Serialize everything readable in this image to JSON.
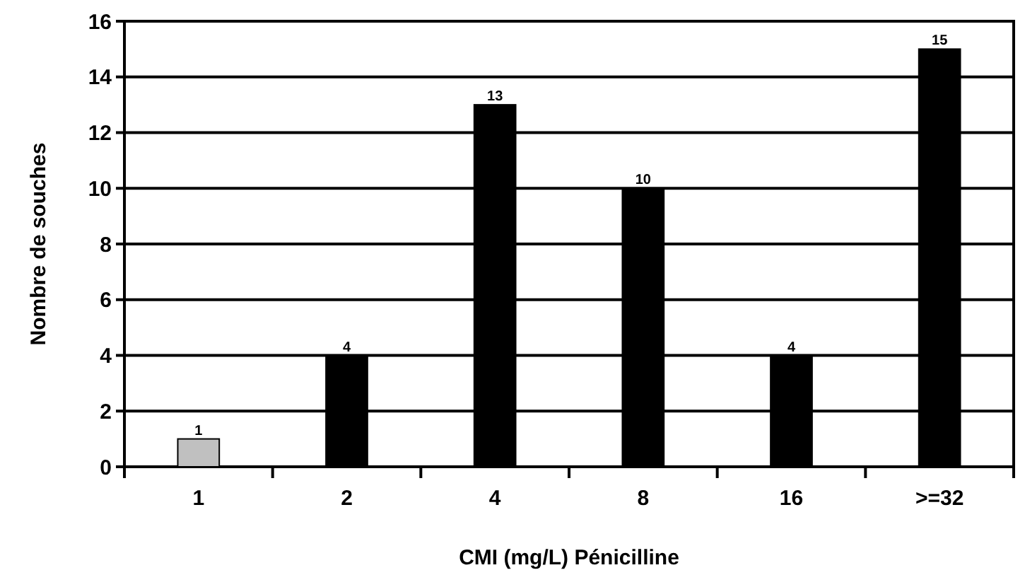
{
  "chart_data": {
    "type": "bar",
    "xlabel": "CMI (mg/L) Pénicilline",
    "ylabel": "Nombre de souches",
    "categories": [
      "1",
      "2",
      "4",
      "8",
      "16",
      ">=32"
    ],
    "values": [
      1,
      4,
      13,
      10,
      4,
      15
    ],
    "colors": [
      "#c0c0c0",
      "#000000",
      "#000000",
      "#000000",
      "#000000",
      "#000000"
    ],
    "ylim": [
      0,
      16
    ],
    "yticks": [
      0,
      2,
      4,
      6,
      8,
      10,
      12,
      14,
      16
    ],
    "grid": "y",
    "data_labels": true
  }
}
